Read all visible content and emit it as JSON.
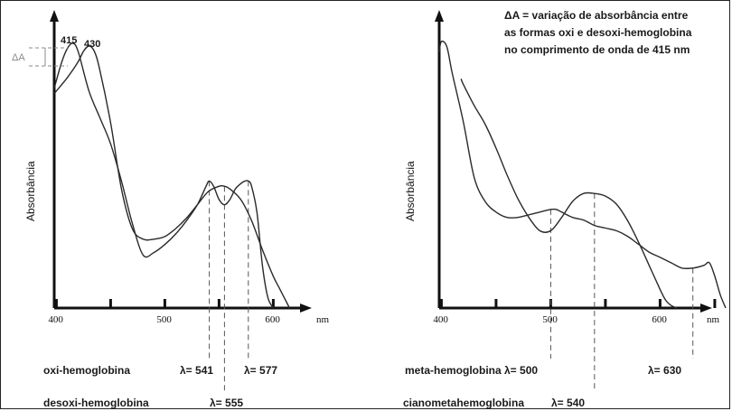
{
  "chart_data": [
    {
      "type": "line",
      "ylabel": "Absorbância",
      "xlabel": "nm",
      "xlim": [
        398,
        620
      ],
      "xticks": [
        400,
        500,
        600
      ],
      "xtick_labels": [
        "400",
        "500",
        "600"
      ],
      "minor_ticks": [
        450,
        550
      ],
      "series": [
        {
          "name": "oxi-hemoglobina",
          "x": [
            398,
            400,
            405,
            410,
            415,
            420,
            430,
            440,
            450,
            460,
            470,
            480,
            490,
            500,
            510,
            520,
            530,
            538,
            541,
            545,
            550,
            555,
            560,
            565,
            570,
            574,
            577,
            580,
            585,
            590,
            595,
            600
          ],
          "y": [
            0.83,
            0.86,
            0.93,
            0.98,
            1.0,
            0.97,
            0.82,
            0.72,
            0.62,
            0.48,
            0.32,
            0.2,
            0.21,
            0.24,
            0.28,
            0.33,
            0.39,
            0.46,
            0.48,
            0.46,
            0.41,
            0.39,
            0.41,
            0.45,
            0.47,
            0.48,
            0.48,
            0.46,
            0.36,
            0.16,
            0.04,
            0.0
          ]
        },
        {
          "name": "desoxi-hemoglobina",
          "x": [
            398,
            400,
            410,
            420,
            425,
            430,
            435,
            440,
            450,
            460,
            470,
            480,
            490,
            500,
            510,
            520,
            530,
            540,
            550,
            555,
            560,
            570,
            580,
            590,
            600,
            605,
            610,
            615
          ],
          "y": [
            0.81,
            0.82,
            0.87,
            0.93,
            0.97,
            0.99,
            0.97,
            0.9,
            0.7,
            0.45,
            0.3,
            0.26,
            0.26,
            0.27,
            0.3,
            0.34,
            0.39,
            0.44,
            0.46,
            0.46,
            0.45,
            0.41,
            0.33,
            0.22,
            0.12,
            0.08,
            0.04,
            0.0
          ]
        }
      ],
      "peak_labels": [
        "415",
        "430"
      ],
      "delta_label": "ΔA",
      "dashed_markers": [
        541,
        555,
        577
      ],
      "annotations": [
        {
          "text": "oxi-hemoglobina"
        },
        {
          "text": "λ= 541"
        },
        {
          "text": "λ= 577"
        },
        {
          "text": "desoxi-hemoglobina"
        },
        {
          "text": "λ= 555"
        }
      ]
    },
    {
      "type": "line",
      "ylabel": "Absorbância",
      "xlabel": "nm",
      "xlim": [
        398,
        680
      ],
      "xticks": [
        400,
        500,
        600
      ],
      "xtick_labels": [
        "400",
        "500",
        "600"
      ],
      "minor_ticks": [
        450,
        550,
        650
      ],
      "series": [
        {
          "name": "meta-hemoglobina",
          "x": [
            398,
            400,
            405,
            410,
            420,
            430,
            440,
            450,
            460,
            470,
            480,
            490,
            500,
            505,
            510,
            520,
            530,
            540,
            550,
            560,
            570,
            580,
            590,
            600,
            610,
            620,
            630,
            640,
            645,
            650,
            655,
            660
          ],
          "y": [
            0.96,
            1.0,
            0.98,
            0.88,
            0.7,
            0.49,
            0.4,
            0.36,
            0.34,
            0.34,
            0.35,
            0.36,
            0.37,
            0.37,
            0.36,
            0.34,
            0.33,
            0.31,
            0.3,
            0.29,
            0.27,
            0.24,
            0.21,
            0.19,
            0.17,
            0.15,
            0.15,
            0.16,
            0.17,
            0.12,
            0.05,
            0.0
          ]
        },
        {
          "name": "cianometahemoglobina",
          "x": [
            418,
            420,
            430,
            440,
            450,
            460,
            470,
            480,
            490,
            500,
            510,
            520,
            530,
            540,
            550,
            560,
            570,
            580,
            590,
            600,
            605,
            610,
            615
          ],
          "y": [
            0.86,
            0.84,
            0.76,
            0.69,
            0.6,
            0.5,
            0.41,
            0.34,
            0.29,
            0.29,
            0.34,
            0.4,
            0.43,
            0.43,
            0.42,
            0.39,
            0.33,
            0.25,
            0.16,
            0.07,
            0.03,
            0.01,
            0.0
          ]
        }
      ],
      "dashed_markers": [
        500,
        540,
        630
      ],
      "annotations": [
        {
          "text": "meta-hemoglobina  λ= 500"
        },
        {
          "text": "λ= 630"
        },
        {
          "text": "cianometahemoglobina"
        },
        {
          "text": "λ= 540"
        }
      ]
    }
  ],
  "note": {
    "lines": [
      "ΔA = variação de absorbância entre",
      "as formas oxi e desoxi-hemoglobina",
      "no comprimento de onda de 415 nm"
    ]
  }
}
